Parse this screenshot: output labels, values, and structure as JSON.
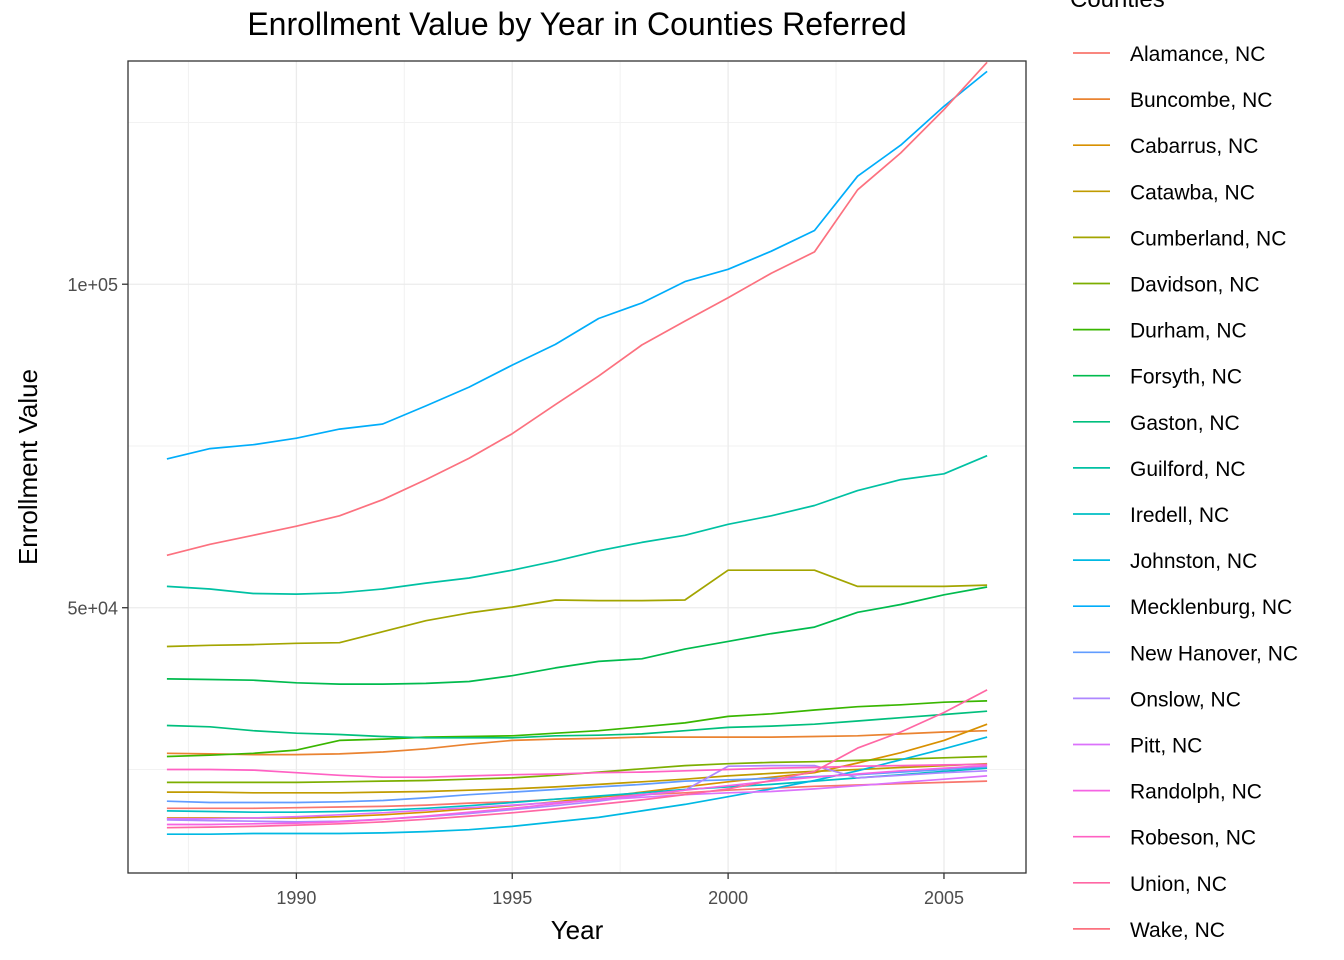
{
  "chart_data": {
    "type": "line",
    "title": "Enrollment Value by Year in Counties Referred",
    "xlabel": "Year",
    "ylabel": "Enrollment Value",
    "legend_title": "Counties",
    "legend_position": "right",
    "grid": true,
    "xlim": [
      1986.1,
      2006.9
    ],
    "ylim": [
      9000,
      134500
    ],
    "x_ticks": [
      {
        "value": 1990,
        "label": "1990"
      },
      {
        "value": 1995,
        "label": "1995"
      },
      {
        "value": 2000,
        "label": "2000"
      },
      {
        "value": 2005,
        "label": "2005"
      }
    ],
    "y_ticks": [
      {
        "value": 50000,
        "label": "5e+04"
      },
      {
        "value": 100000,
        "label": "1e+05"
      }
    ],
    "x": [
      1987,
      1988,
      1989,
      1990,
      1991,
      1992,
      1993,
      1994,
      1995,
      1996,
      1997,
      1998,
      1999,
      2000,
      2001,
      2002,
      2003,
      2004,
      2005,
      2006
    ],
    "series": [
      {
        "name": "Alamance, NC",
        "color": "#F8766D",
        "values": [
          19000,
          19000,
          19000,
          19100,
          19200,
          19300,
          19500,
          19800,
          20000,
          20400,
          20800,
          21100,
          21400,
          21800,
          22100,
          22400,
          22600,
          22800,
          23000,
          23200
        ]
      },
      {
        "name": "Buncombe, NC",
        "color": "#EA8331",
        "values": [
          27500,
          27400,
          27300,
          27300,
          27400,
          27700,
          28200,
          28900,
          29500,
          29700,
          29800,
          30000,
          30000,
          30000,
          30000,
          30100,
          30200,
          30500,
          30800,
          31000
        ]
      },
      {
        "name": "Cabarrus, NC",
        "color": "#D89000",
        "values": [
          17500,
          17500,
          17500,
          17500,
          17700,
          18000,
          18400,
          18900,
          19400,
          20000,
          20700,
          21500,
          22300,
          23100,
          23800,
          24500,
          26000,
          27600,
          29500,
          32000
        ]
      },
      {
        "name": "Catawba, NC",
        "color": "#C09B00",
        "values": [
          21500,
          21500,
          21400,
          21400,
          21400,
          21500,
          21600,
          21800,
          22000,
          22300,
          22700,
          23100,
          23500,
          24000,
          24400,
          24700,
          25000,
          25300,
          25600,
          25900
        ]
      },
      {
        "name": "Cumberland, NC",
        "color": "#A3A500",
        "values": [
          44000,
          44200,
          44300,
          44500,
          44600,
          46300,
          48000,
          49200,
          50100,
          51200,
          51100,
          51100,
          51200,
          55800,
          55800,
          55800,
          53300,
          53300,
          53300,
          53500
        ]
      },
      {
        "name": "Davidson, NC",
        "color": "#7CAE00",
        "values": [
          23000,
          23000,
          23000,
          23000,
          23100,
          23200,
          23300,
          23500,
          23700,
          24100,
          24600,
          25100,
          25600,
          25900,
          26100,
          26200,
          26400,
          26600,
          26800,
          27000
        ]
      },
      {
        "name": "Durham, NC",
        "color": "#39B600",
        "values": [
          27000,
          27200,
          27500,
          28000,
          29500,
          29700,
          30000,
          30100,
          30200,
          30600,
          31000,
          31600,
          32200,
          33200,
          33600,
          34200,
          34700,
          35000,
          35400,
          35600
        ]
      },
      {
        "name": "Forsyth, NC",
        "color": "#00BB4E",
        "values": [
          39000,
          38900,
          38800,
          38400,
          38200,
          38200,
          38300,
          38600,
          39500,
          40700,
          41700,
          42100,
          43600,
          44800,
          46000,
          47000,
          49300,
          50500,
          52000,
          53200
        ]
      },
      {
        "name": "Gaston, NC",
        "color": "#00BF7D",
        "values": [
          31800,
          31600,
          31000,
          30600,
          30400,
          30100,
          29900,
          29900,
          29900,
          30200,
          30300,
          30500,
          31000,
          31500,
          31700,
          32000,
          32500,
          33000,
          33500,
          34000
        ]
      },
      {
        "name": "Guilford, NC",
        "color": "#00C1A3",
        "values": [
          53300,
          52900,
          52200,
          52100,
          52300,
          52900,
          53800,
          54600,
          55800,
          57200,
          58800,
          60100,
          61200,
          62900,
          64200,
          65800,
          68100,
          69800,
          70700,
          73500
        ]
      },
      {
        "name": "Iredell, NC",
        "color": "#00BFC4",
        "values": [
          18600,
          18500,
          18400,
          18400,
          18500,
          18700,
          19000,
          19400,
          19900,
          20400,
          20900,
          21400,
          21900,
          22300,
          22700,
          23200,
          23700,
          24200,
          24700,
          25200
        ]
      },
      {
        "name": "Johnston, NC",
        "color": "#00B9E3",
        "values": [
          15000,
          15000,
          15100,
          15100,
          15100,
          15200,
          15400,
          15700,
          16200,
          16900,
          17600,
          18600,
          19600,
          20800,
          22000,
          23300,
          24800,
          26500,
          28200,
          30000
        ]
      },
      {
        "name": "Mecklenburg, NC",
        "color": "#00ADFA",
        "values": [
          73000,
          74600,
          75200,
          76200,
          77600,
          78400,
          81200,
          84100,
          87500,
          90700,
          94700,
          97100,
          100400,
          102300,
          105100,
          108300,
          116700,
          121500,
          127500,
          132900
        ]
      },
      {
        "name": "New Hanover, NC",
        "color": "#619CFF",
        "values": [
          20100,
          19900,
          19900,
          19900,
          20000,
          20200,
          20600,
          21100,
          21500,
          21900,
          22300,
          22700,
          23200,
          23400,
          23600,
          23900,
          24200,
          24600,
          25000,
          25400
        ]
      },
      {
        "name": "Onslow, NC",
        "color": "#AE87FF",
        "values": [
          17200,
          17100,
          17000,
          16900,
          17000,
          17300,
          17700,
          18200,
          18800,
          19400,
          20100,
          21000,
          21800,
          25500,
          25600,
          25600,
          23700,
          24100,
          24500,
          24800
        ]
      },
      {
        "name": "Pitt, NC",
        "color": "#DB72FB",
        "values": [
          17400,
          17400,
          17500,
          17700,
          18000,
          18300,
          18700,
          19100,
          19500,
          19900,
          20300,
          20700,
          21100,
          21400,
          21600,
          22000,
          22500,
          23000,
          23500,
          24000
        ]
      },
      {
        "name": "Randolph, NC",
        "color": "#F564E3",
        "values": [
          16500,
          16500,
          16600,
          16700,
          16900,
          17300,
          17800,
          18400,
          19000,
          19700,
          20400,
          21100,
          21800,
          22500,
          23200,
          23800,
          24300,
          24800,
          25200,
          25600
        ]
      },
      {
        "name": "Robeson, NC",
        "color": "#FF61C3",
        "values": [
          25000,
          25000,
          24900,
          24500,
          24100,
          23800,
          23800,
          24000,
          24200,
          24300,
          24500,
          24600,
          24800,
          25000,
          25200,
          25300,
          25500,
          25600,
          25700,
          25800
        ]
      },
      {
        "name": "Union, NC",
        "color": "#FF67A4",
        "values": [
          16000,
          16100,
          16200,
          16400,
          16600,
          16900,
          17300,
          17800,
          18300,
          18900,
          19600,
          20300,
          21100,
          22000,
          23300,
          24700,
          28300,
          30800,
          33800,
          37300
        ]
      },
      {
        "name": "Wake, NC",
        "color": "#FC717F",
        "values": [
          58100,
          59800,
          61200,
          62600,
          64200,
          66700,
          69800,
          73100,
          76900,
          81400,
          85800,
          90600,
          94300,
          97900,
          101700,
          105000,
          114600,
          120300,
          127000,
          134300
        ]
      }
    ]
  }
}
